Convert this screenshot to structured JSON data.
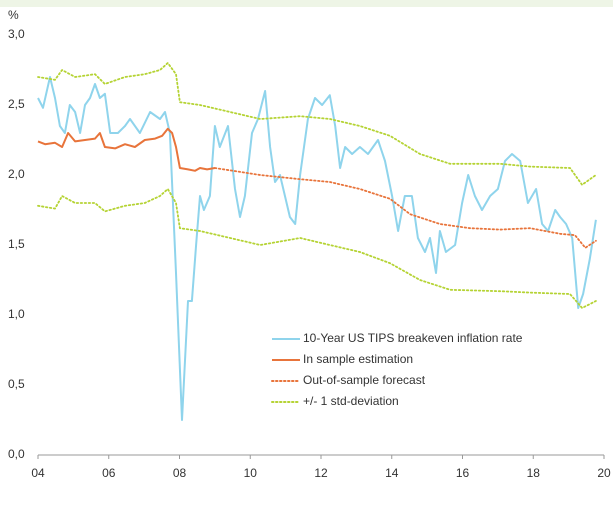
{
  "chart_data": {
    "type": "line",
    "y_unit": "%",
    "xlim": [
      2004,
      2020
    ],
    "xticks": [
      {
        "value": 2004,
        "label": "04"
      },
      {
        "value": 2006,
        "label": "06"
      },
      {
        "value": 2008,
        "label": "08"
      },
      {
        "value": 2010,
        "label": "10"
      },
      {
        "value": 2012,
        "label": "12"
      },
      {
        "value": 2014,
        "label": "14"
      },
      {
        "value": 2016,
        "label": "16"
      },
      {
        "value": 2018,
        "label": "18"
      },
      {
        "value": 2020,
        "label": "20"
      }
    ],
    "ylim": [
      0,
      3
    ],
    "yticks": [
      {
        "value": 0,
        "label": "0,0"
      },
      {
        "value": 0.5,
        "label": "0,5"
      },
      {
        "value": 1,
        "label": "1,0"
      },
      {
        "value": 1.5,
        "label": "1,5"
      },
      {
        "value": 2,
        "label": "2,0"
      },
      {
        "value": 2.5,
        "label": "2,5"
      },
      {
        "value": 3,
        "label": "3,0"
      }
    ],
    "series": [
      {
        "name": "10-Year US TIPS breakeven inflation rate",
        "color": "#8fd4ec",
        "style": "solid",
        "x": [
          2004.0,
          2004.14,
          2004.34,
          2004.48,
          2004.62,
          2004.76,
          2004.9,
          2005.05,
          2005.19,
          2005.33,
          2005.47,
          2005.61,
          2005.75,
          2005.89,
          2006.04,
          2006.26,
          2006.46,
          2006.6,
          2006.88,
          2007.17,
          2007.45,
          2007.59,
          2007.73,
          2007.9,
          2008.07,
          2008.24,
          2008.35,
          2008.47,
          2008.58,
          2008.69,
          2008.86,
          2009.0,
          2009.14,
          2009.37,
          2009.57,
          2009.71,
          2009.85,
          2010.05,
          2010.22,
          2010.42,
          2010.56,
          2010.7,
          2010.84,
          2011.12,
          2011.27,
          2011.41,
          2011.63,
          2011.83,
          2012.03,
          2012.25,
          2012.4,
          2012.54,
          2012.68,
          2012.88,
          2013.1,
          2013.33,
          2013.61,
          2013.81,
          2014.01,
          2014.18,
          2014.37,
          2014.57,
          2014.74,
          2014.94,
          2015.08,
          2015.25,
          2015.36,
          2015.53,
          2015.79,
          2015.99,
          2016.16,
          2016.35,
          2016.55,
          2016.78,
          2017.0,
          2017.2,
          2017.4,
          2017.63,
          2017.85,
          2018.08,
          2018.25,
          2018.42,
          2018.62,
          2018.76,
          2018.93,
          2019.1,
          2019.27,
          2019.41,
          2019.6,
          2019.77
        ],
        "values": [
          2.55,
          2.48,
          2.7,
          2.55,
          2.35,
          2.3,
          2.5,
          2.45,
          2.3,
          2.5,
          2.55,
          2.65,
          2.55,
          2.58,
          2.3,
          2.3,
          2.35,
          2.4,
          2.3,
          2.45,
          2.4,
          2.45,
          2.3,
          1.3,
          0.25,
          1.1,
          1.1,
          1.5,
          1.85,
          1.75,
          1.85,
          2.35,
          2.2,
          2.35,
          1.9,
          1.7,
          1.85,
          2.3,
          2.4,
          2.6,
          2.2,
          1.95,
          2.0,
          1.7,
          1.65,
          2.0,
          2.4,
          2.55,
          2.5,
          2.57,
          2.35,
          2.05,
          2.2,
          2.15,
          2.2,
          2.15,
          2.25,
          2.1,
          1.85,
          1.6,
          1.85,
          1.85,
          1.55,
          1.45,
          1.55,
          1.3,
          1.6,
          1.45,
          1.5,
          1.8,
          2.0,
          1.85,
          1.75,
          1.85,
          1.9,
          2.1,
          2.15,
          2.1,
          1.8,
          1.9,
          1.65,
          1.6,
          1.75,
          1.7,
          1.65,
          1.55,
          1.05,
          1.15,
          1.4,
          1.68
        ]
      },
      {
        "name": "In sample estimation",
        "color": "#e8743b",
        "style": "solid",
        "x": [
          2004.0,
          2004.2,
          2004.48,
          2004.68,
          2004.85,
          2005.05,
          2005.33,
          2005.61,
          2005.75,
          2005.89,
          2006.18,
          2006.46,
          2006.74,
          2007.02,
          2007.31,
          2007.51,
          2007.67,
          2007.79,
          2007.9,
          2008.01,
          2008.24,
          2008.44,
          2008.58,
          2008.78,
          2009.0
        ],
        "values": [
          2.24,
          2.22,
          2.23,
          2.2,
          2.3,
          2.24,
          2.25,
          2.26,
          2.3,
          2.2,
          2.19,
          2.22,
          2.2,
          2.25,
          2.26,
          2.28,
          2.33,
          2.3,
          2.2,
          2.05,
          2.04,
          2.03,
          2.05,
          2.04,
          2.05
        ]
      },
      {
        "name": "Out-of-sample forecast",
        "color": "#e8743b",
        "style": "dotted",
        "x": [
          2009.0,
          2010.28,
          2011.41,
          2012.25,
          2013.1,
          2013.95,
          2014.52,
          2015.36,
          2016.21,
          2017.06,
          2017.91,
          2018.76,
          2019.18,
          2019.47,
          2019.77
        ],
        "values": [
          2.05,
          2.0,
          1.97,
          1.95,
          1.9,
          1.83,
          1.72,
          1.65,
          1.62,
          1.61,
          1.62,
          1.58,
          1.57,
          1.48,
          1.53
        ]
      },
      {
        "name": "+/- 1 std-deviation",
        "color": "#b5d334",
        "style": "dotted",
        "x": [
          2004.0,
          2004.48,
          2004.68,
          2005.05,
          2005.61,
          2005.89,
          2006.46,
          2007.02,
          2007.45,
          2007.67,
          2007.9,
          2008.01,
          2008.58,
          2009.43,
          2010.28,
          2011.41,
          2012.25,
          2013.1,
          2013.95,
          2014.8,
          2015.65,
          2017.06,
          2017.91,
          2019.04,
          2019.38,
          2019.77
        ],
        "values": [
          2.7,
          2.68,
          2.75,
          2.7,
          2.72,
          2.65,
          2.7,
          2.72,
          2.75,
          2.8,
          2.72,
          2.52,
          2.5,
          2.45,
          2.4,
          2.42,
          2.4,
          2.35,
          2.28,
          2.15,
          2.08,
          2.08,
          2.06,
          2.05,
          1.93,
          2.0
        ]
      },
      {
        "color": "#b5d334",
        "style": "dotted",
        "x": [
          2004.0,
          2004.48,
          2004.68,
          2005.05,
          2005.61,
          2005.89,
          2006.46,
          2007.02,
          2007.45,
          2007.67,
          2007.9,
          2008.01,
          2008.58,
          2009.43,
          2010.28,
          2011.41,
          2012.25,
          2013.1,
          2013.95,
          2014.8,
          2015.65,
          2017.06,
          2017.91,
          2019.04,
          2019.38,
          2019.77
        ],
        "values": [
          1.78,
          1.76,
          1.85,
          1.8,
          1.8,
          1.74,
          1.78,
          1.8,
          1.85,
          1.9,
          1.8,
          1.62,
          1.6,
          1.55,
          1.5,
          1.55,
          1.5,
          1.45,
          1.37,
          1.25,
          1.18,
          1.17,
          1.16,
          1.15,
          1.05,
          1.1
        ]
      }
    ]
  }
}
